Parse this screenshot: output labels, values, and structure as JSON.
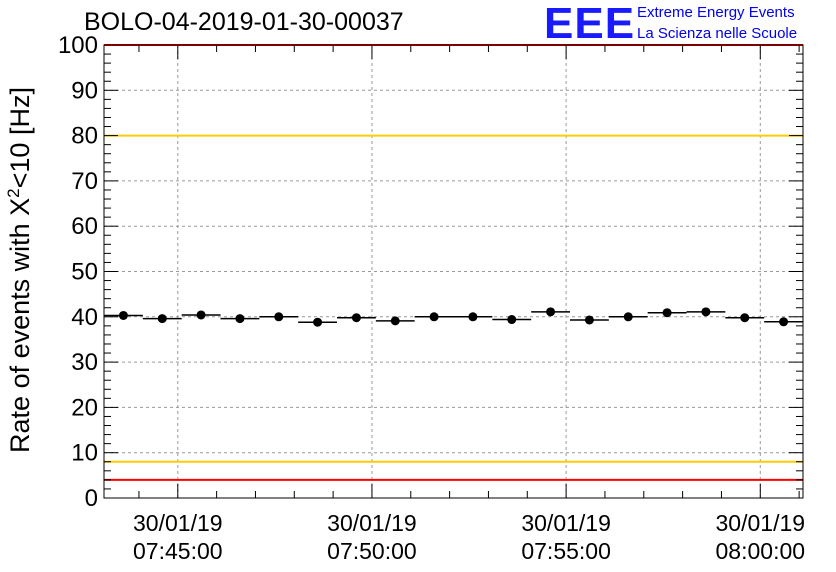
{
  "header": {
    "run_title": "BOLO-04-2019-01-30-00037",
    "logo_text": "EEE",
    "logo_line1": "Extreme Energy Events",
    "logo_line2": "La Scienza nelle Scuole"
  },
  "chart_data": {
    "type": "scatter",
    "title": "BOLO-04-2019-01-30-00037",
    "xlabel": "",
    "ylabel_main": "Rate of events with X",
    "ylabel_sup": "2",
    "ylabel_tail": "<10 [Hz]",
    "xlim_minutes": [
      0,
      18
    ],
    "ylim": [
      0,
      100
    ],
    "y_ticks": [
      0,
      10,
      20,
      30,
      40,
      50,
      60,
      70,
      80,
      90,
      100
    ],
    "x_ticks": [
      {
        "minute": 1.9,
        "date": "30/01/19",
        "time": "07:45:00"
      },
      {
        "minute": 6.9,
        "date": "30/01/19",
        "time": "07:50:00"
      },
      {
        "minute": 11.9,
        "date": "30/01/19",
        "time": "07:55:00"
      },
      {
        "minute": 16.9,
        "date": "30/01/19",
        "time": "08:00:00"
      }
    ],
    "grid": true,
    "bin_width_minutes": 1,
    "points": [
      {
        "x": 0.5,
        "y": 40.3
      },
      {
        "x": 1.5,
        "y": 39.6
      },
      {
        "x": 2.5,
        "y": 40.4
      },
      {
        "x": 3.5,
        "y": 39.6
      },
      {
        "x": 4.5,
        "y": 40.0
      },
      {
        "x": 5.5,
        "y": 38.8
      },
      {
        "x": 6.5,
        "y": 39.8
      },
      {
        "x": 7.5,
        "y": 39.1
      },
      {
        "x": 8.5,
        "y": 40.0
      },
      {
        "x": 9.5,
        "y": 40.0
      },
      {
        "x": 10.5,
        "y": 39.4
      },
      {
        "x": 11.5,
        "y": 41.1
      },
      {
        "x": 12.5,
        "y": 39.3
      },
      {
        "x": 13.5,
        "y": 40.0
      },
      {
        "x": 14.5,
        "y": 40.9
      },
      {
        "x": 15.5,
        "y": 41.1
      },
      {
        "x": 16.5,
        "y": 39.8
      },
      {
        "x": 17.5,
        "y": 38.9
      }
    ],
    "reference_lines": [
      {
        "y": 100,
        "color": "#ff0000"
      },
      {
        "y": 80,
        "color": "#ffcc00"
      },
      {
        "y": 8,
        "color": "#ffcc00"
      },
      {
        "y": 4,
        "color": "#ff0000"
      }
    ]
  }
}
